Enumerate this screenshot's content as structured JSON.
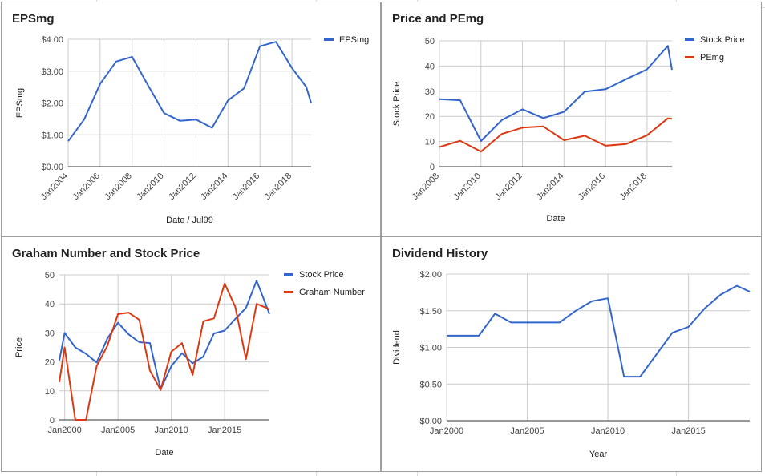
{
  "colors": {
    "blue": "#3366cc",
    "red": "#dc3912",
    "grid": "#cccccc",
    "axis": "#333333"
  },
  "panels": [
    {
      "title": "EPSmg"
    },
    {
      "title": "Price and PEmg"
    },
    {
      "title": "Graham Number and Stock Price"
    },
    {
      "title": "Dividend History"
    }
  ],
  "chart_data": [
    {
      "type": "line",
      "title": "EPSmg",
      "xlabel": "Date / Jul99",
      "ylabel": "EPSmg",
      "xlim": [
        2004,
        2019.2
      ],
      "ylim": [
        0,
        4
      ],
      "x_ticks": [
        2004,
        2006,
        2008,
        2010,
        2012,
        2014,
        2016,
        2018
      ],
      "x_tick_labels": [
        "Jan2004",
        "Jan2006",
        "Jan2008",
        "Jan2010",
        "Jan2012",
        "Jan2014",
        "Jan2016",
        "Jan2018"
      ],
      "y_ticks": [
        0,
        1,
        2,
        3,
        4
      ],
      "y_tick_labels": [
        "$0.00",
        "$1.00",
        "$2.00",
        "$3.00",
        "$4.00"
      ],
      "legend_position": "top-right",
      "series": [
        {
          "name": "EPSmg",
          "color": "#3366cc",
          "x": [
            2004,
            2005,
            2006,
            2007,
            2008,
            2009,
            2010,
            2011,
            2012,
            2013,
            2014,
            2015,
            2016,
            2017,
            2018,
            2018.9,
            2019.2
          ],
          "y": [
            0.8,
            1.48,
            2.6,
            3.3,
            3.45,
            2.55,
            1.68,
            1.44,
            1.48,
            1.22,
            2.08,
            2.46,
            3.78,
            3.92,
            3.1,
            2.5,
            2.0
          ]
        }
      ]
    },
    {
      "type": "line",
      "title": "Price and PEmg",
      "xlabel": "Date",
      "ylabel": "Stock Price",
      "xlim": [
        2008,
        2019.2
      ],
      "ylim": [
        0,
        50
      ],
      "x_ticks": [
        2008,
        2010,
        2012,
        2014,
        2016,
        2018
      ],
      "x_tick_labels": [
        "Jan2008",
        "Jan2010",
        "Jan2012",
        "Jan2014",
        "Jan2016",
        "Jan2018"
      ],
      "y_ticks": [
        0,
        10,
        20,
        30,
        40,
        50
      ],
      "y_tick_labels": [
        "0",
        "10",
        "20",
        "30",
        "40",
        "50"
      ],
      "legend_position": "top-right",
      "series": [
        {
          "name": "Stock Price",
          "color": "#3366cc",
          "x": [
            2008,
            2009,
            2010,
            2011,
            2012,
            2013,
            2014,
            2015,
            2016,
            2017,
            2018,
            2019,
            2019.2
          ],
          "y": [
            26.8,
            26.4,
            10.2,
            18.5,
            22.8,
            19.3,
            21.8,
            29.8,
            30.8,
            34.8,
            38.7,
            48.0,
            38.5
          ]
        },
        {
          "name": "PEmg",
          "color": "#dc3912",
          "x": [
            2008,
            2009,
            2010,
            2011,
            2012,
            2013,
            2014,
            2015,
            2016,
            2017,
            2018,
            2019,
            2019.2
          ],
          "y": [
            7.8,
            10.3,
            6.0,
            13.0,
            15.5,
            16.0,
            10.5,
            12.3,
            8.3,
            9.0,
            12.5,
            19.2,
            19.0
          ]
        }
      ]
    },
    {
      "type": "line",
      "title": "Graham Number and Stock Price",
      "xlabel": "Date",
      "ylabel": "Price",
      "xlim": [
        1999.5,
        2019.2
      ],
      "ylim": [
        0,
        50
      ],
      "x_ticks": [
        2000,
        2005,
        2010,
        2015
      ],
      "x_tick_labels": [
        "Jan2000",
        "Jan2005",
        "Jan2010",
        "Jan2015"
      ],
      "y_ticks": [
        0,
        10,
        20,
        30,
        40,
        50
      ],
      "y_tick_labels": [
        "0",
        "10",
        "20",
        "30",
        "40",
        "50"
      ],
      "legend_position": "top-right",
      "series": [
        {
          "name": "Stock Price",
          "color": "#3366cc",
          "x": [
            1999.5,
            2000,
            2001,
            2002,
            2003,
            2004,
            2005,
            2006,
            2007,
            2008,
            2009,
            2010,
            2011,
            2012,
            2013,
            2014,
            2015,
            2016,
            2017,
            2018,
            2019,
            2019.2
          ],
          "y": [
            20.5,
            30.0,
            25.0,
            22.8,
            19.8,
            28.0,
            33.5,
            29.5,
            26.8,
            26.5,
            10.5,
            18.5,
            23.0,
            19.5,
            21.8,
            29.8,
            30.8,
            34.8,
            38.6,
            48.0,
            38.5,
            36.5
          ]
        },
        {
          "name": "Graham Number",
          "color": "#dc3912",
          "x": [
            1999.5,
            2000,
            2001,
            2002,
            2003,
            2004,
            2005,
            2006,
            2007,
            2008,
            2009,
            2010,
            2011,
            2012,
            2013,
            2014,
            2015,
            2016,
            2017,
            2018,
            2019,
            2019.2
          ],
          "y": [
            13.0,
            25.0,
            0,
            0,
            18.5,
            25.5,
            36.5,
            37.0,
            34.5,
            17.0,
            10.3,
            23.5,
            26.5,
            15.5,
            34.0,
            35.0,
            47.0,
            39.0,
            21.0,
            40.0,
            38.5,
            38.0
          ]
        }
      ]
    },
    {
      "type": "line",
      "title": "Dividend History",
      "xlabel": "Year",
      "ylabel": "Dividend",
      "xlim": [
        2000,
        2018.8
      ],
      "ylim": [
        0,
        2
      ],
      "x_ticks": [
        2000,
        2005,
        2010,
        2015
      ],
      "x_tick_labels": [
        "Jan2000",
        "Jan2005",
        "Jan2010",
        "Jan2015"
      ],
      "y_ticks": [
        0,
        0.5,
        1.0,
        1.5,
        2.0
      ],
      "y_tick_labels": [
        "$0.00",
        "$0.50",
        "$1.00",
        "$1.50",
        "$2.00"
      ],
      "legend_position": "none",
      "series": [
        {
          "name": "",
          "color": "#3366cc",
          "x": [
            2000,
            2001,
            2002,
            2003,
            2004,
            2005,
            2006,
            2007,
            2008,
            2009,
            2010,
            2011,
            2012,
            2013,
            2014,
            2015,
            2016,
            2017,
            2018,
            2018.8
          ],
          "y": [
            1.16,
            1.16,
            1.16,
            1.46,
            1.34,
            1.34,
            1.34,
            1.34,
            1.5,
            1.63,
            1.67,
            0.6,
            0.6,
            0.9,
            1.2,
            1.28,
            1.53,
            1.72,
            1.84,
            1.76
          ]
        }
      ]
    }
  ]
}
